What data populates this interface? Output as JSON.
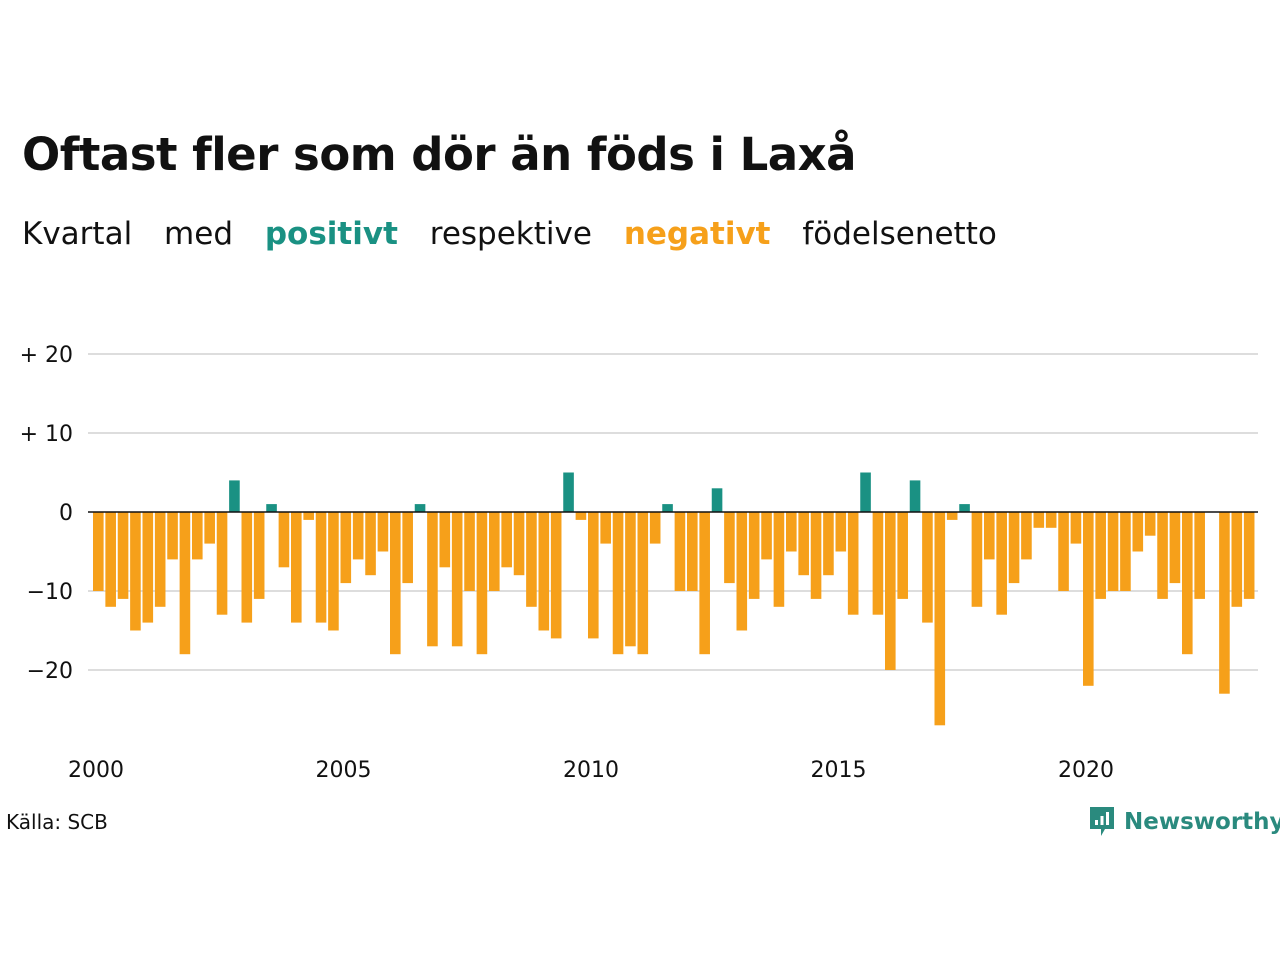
{
  "header": {
    "title": "Oftast fler som dör än föds i Laxå",
    "subtitle": {
      "w1": "Kvartal",
      "w2": "med",
      "positive_word": "positivt",
      "w3": "respektive",
      "negative_word": "negativt",
      "w4": "födelsenetto"
    }
  },
  "footer": {
    "source": "Källa: SCB",
    "logo_text": "Newsworthy"
  },
  "colors": {
    "positive": "#1a9183",
    "negative": "#f6a01a",
    "grid": "#dddddd",
    "zero_line": "#111111",
    "logo": "#2a8a7e"
  },
  "icons": [
    "newsworthy-logo-icon"
  ],
  "chart_data": {
    "type": "bar",
    "title": "Oftast fler som dör än föds i Laxå",
    "subtitle": "Kvartal med positivt respektive negativt födelsenetto",
    "xlabel": "",
    "ylabel": "",
    "x_start": "2000 Q1",
    "x_tick_labels": [
      "2000",
      "2005",
      "2010",
      "2015",
      "2020"
    ],
    "y_ticks": [
      20,
      10,
      0,
      -10,
      -20
    ],
    "y_tick_labels": [
      "+ 20",
      "+ 10",
      "0",
      "−10",
      "−20"
    ],
    "ylim": [
      -30,
      24
    ],
    "grid": true,
    "series": [
      {
        "values": [
          -10,
          -12,
          -11,
          -15,
          -14,
          -12,
          -6,
          -18,
          -6,
          -4,
          -13,
          4,
          -14,
          -11,
          1,
          -7,
          -14,
          -1,
          -14,
          -15,
          -9,
          -6,
          -8,
          -5,
          -18,
          -9,
          1,
          -17,
          -7,
          -17,
          -10,
          -18,
          -10,
          -7,
          -8,
          -12,
          -15,
          -16,
          5,
          -1,
          -16,
          -4,
          -18,
          -17,
          -18,
          -4,
          1,
          -10,
          -10,
          -18,
          3,
          -9,
          -15,
          -11,
          -6,
          -12,
          -5,
          -8,
          -11,
          -8,
          -5,
          -13,
          5,
          -13,
          -20,
          -11,
          4,
          -14,
          -27,
          -1,
          1,
          -12,
          -6,
          -13,
          -9,
          -6,
          -2,
          -2,
          -10,
          -4,
          -22,
          -11,
          -10,
          -10,
          -5,
          -3,
          -11,
          -9,
          -18,
          -11,
          0,
          -23,
          -12,
          -11
        ]
      }
    ]
  }
}
